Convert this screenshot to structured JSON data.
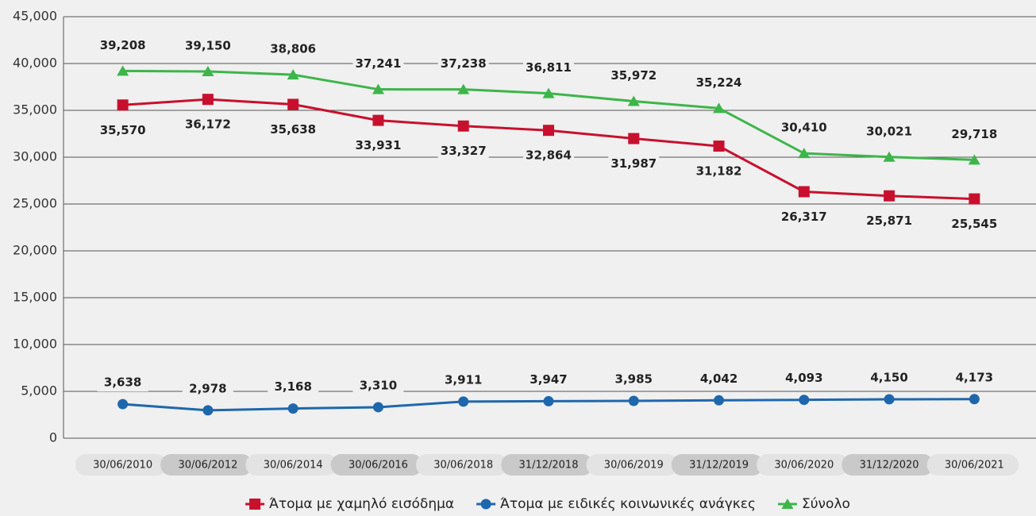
{
  "chart_data": {
    "type": "line",
    "categories": [
      "30/06/2010",
      "30/06/2012",
      "30/06/2014",
      "30/06/2016",
      "30/06/2018",
      "31/12/2018",
      "30/06/2019",
      "31/12/2019",
      "30/06/2020",
      "31/12/2020",
      "30/06/2021"
    ],
    "series": [
      {
        "name": "Άτομα με χαμηλό εισόδημα",
        "color": "#c8102e",
        "marker": "square",
        "values": [
          35570,
          36172,
          35638,
          33931,
          33327,
          32864,
          31987,
          31182,
          26317,
          25871,
          25545
        ],
        "value_labels": [
          "35,570",
          "36,172",
          "35,638",
          "33,931",
          "33,327",
          "32,864",
          "31,987",
          "31,182",
          "26,317",
          "25,871",
          "25,545"
        ]
      },
      {
        "name": "Άτομα με ειδικές κοινωνικές ανάγκες",
        "color": "#1f67ad",
        "marker": "circle",
        "values": [
          3638,
          2978,
          3168,
          3310,
          3911,
          3947,
          3985,
          4042,
          4093,
          4150,
          4173
        ],
        "value_labels": [
          "3,638",
          "2,978",
          "3,168",
          "3,310",
          "3,911",
          "3,947",
          "3,985",
          "4,042",
          "4,093",
          "4,150",
          "4,173"
        ]
      },
      {
        "name": "Σύνολο",
        "color": "#3db54a",
        "marker": "triangle",
        "values": [
          39208,
          39150,
          38806,
          37241,
          37238,
          36811,
          35972,
          35224,
          30410,
          30021,
          29718
        ],
        "value_labels": [
          "39,208",
          "39,150",
          "38,806",
          "37,241",
          "37,238",
          "36,811",
          "35,972",
          "35,224",
          "30,410",
          "30,021",
          "29,718"
        ]
      }
    ],
    "ylim": [
      0,
      45000
    ],
    "yticks": [
      0,
      {
        "value": 5000,
        "label": "5,000"
      },
      {
        "value": 10000,
        "label": "10,000"
      },
      {
        "value": 15000,
        "label": "15,000"
      },
      {
        "value": 20000,
        "label": "20,000"
      },
      {
        "value": 25000,
        "label": "25,000"
      },
      {
        "value": 30000,
        "label": "30,000"
      },
      {
        "value": 35000,
        "label": "35,000"
      },
      {
        "value": 40000,
        "label": "40,000"
      },
      {
        "value": 45000,
        "label": "45,000"
      }
    ],
    "grid": true,
    "legend": "bottom"
  }
}
